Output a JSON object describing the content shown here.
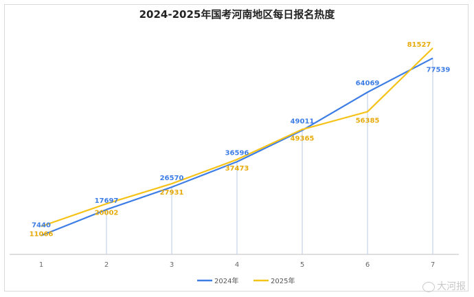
{
  "title": "2024-2025年国考河南地区每日报名热度",
  "watermark": "大河报",
  "chart_data": {
    "type": "line",
    "title": "2024-2025年国考河南地区每日报名热度",
    "categories": [
      "1",
      "2",
      "3",
      "4",
      "5",
      "6",
      "7"
    ],
    "ylim": [
      0,
      90000
    ],
    "grid": false,
    "legend": "bottom",
    "series": [
      {
        "name": "2024年",
        "color": "#3d7de6",
        "label_color": "#3d7de6",
        "values": [
          7440,
          17697,
          26570,
          36596,
          49011,
          64069,
          77539
        ]
      },
      {
        "name": "2025年",
        "color": "#f5c218",
        "label_color": "#e6ab0a",
        "values": [
          11066,
          20002,
          27931,
          37473,
          49365,
          56385,
          81527
        ]
      }
    ]
  }
}
